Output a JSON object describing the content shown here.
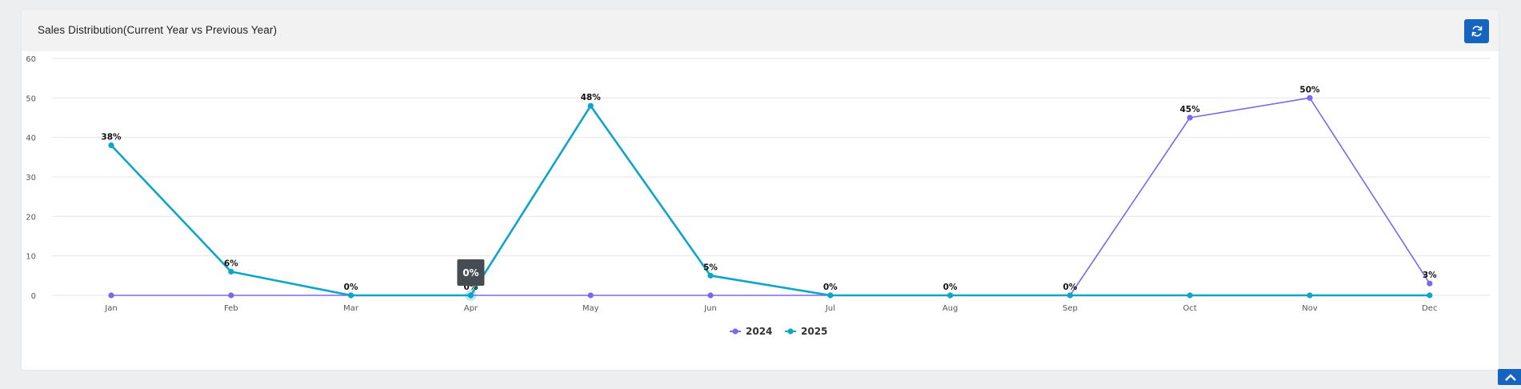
{
  "card": {
    "title": "Sales Distribution(Current Year vs Previous Year)"
  },
  "icons": {
    "refresh": "refresh-icon",
    "scroll_top": "chevron-up-icon"
  },
  "colors": {
    "series_2024": "#7b68ee",
    "series_2025": "#0ea5c8",
    "accent": "#1565c0"
  },
  "tooltip": {
    "text": "0%",
    "category": "Apr"
  },
  "chart_data": {
    "type": "line",
    "categories": [
      "Jan",
      "Feb",
      "Mar",
      "Apr",
      "May",
      "Jun",
      "Jul",
      "Aug",
      "Sep",
      "Oct",
      "Nov",
      "Dec"
    ],
    "series": [
      {
        "name": "2024",
        "values": [
          0,
          0,
          0,
          0,
          0,
          0,
          0,
          0,
          0,
          45,
          50,
          3
        ]
      },
      {
        "name": "2025",
        "values": [
          38,
          6,
          0,
          0,
          48,
          5,
          0,
          0,
          0,
          0,
          0,
          0
        ]
      }
    ],
    "data_label_suffix": "%",
    "ylim": [
      0,
      60
    ],
    "yticks": [
      0,
      10,
      20,
      30,
      40,
      50,
      60
    ],
    "grid": true,
    "legend": "bottom-center",
    "title": "",
    "xlabel": "",
    "ylabel": ""
  }
}
